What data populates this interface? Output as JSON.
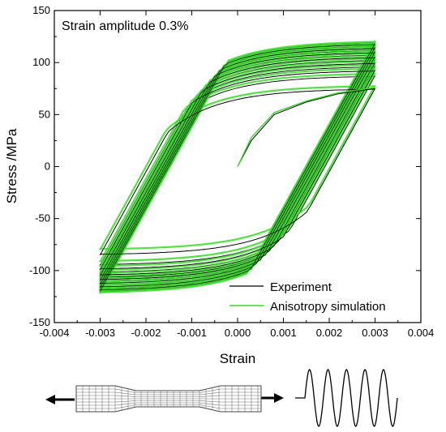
{
  "chart_data": {
    "type": "line",
    "title": "",
    "annotation": "Strain amplitude  0.3%",
    "xlabel": "Strain",
    "ylabel": "Stress /MPa",
    "xlim": [
      -0.004,
      0.004
    ],
    "ylim": [
      -150,
      150
    ],
    "x_ticks": [
      "-0.004",
      "-0.003",
      "-0.002",
      "-0.001",
      "0.000",
      "0.001",
      "0.002",
      "0.003",
      "0.004"
    ],
    "y_ticks": [
      "-150",
      "-100",
      "-50",
      "0",
      "50",
      "100",
      "150"
    ],
    "grid": false,
    "legend_position": "bottom-right",
    "strain_amplitude": 0.003,
    "series": [
      {
        "name": "Experiment",
        "color": "#000000",
        "initial_loading": [
          [
            0.0,
            0
          ],
          [
            0.0003,
            25
          ],
          [
            0.0008,
            50
          ],
          [
            0.0015,
            62
          ],
          [
            0.0022,
            70
          ],
          [
            0.003,
            75
          ]
        ],
        "cycle_peak_stress_range": [
          75,
          120
        ],
        "cycle_valley_stress_range": [
          -85,
          -121
        ]
      },
      {
        "name": "Anisotropy simulation",
        "color": "#33dd22",
        "initial_loading": [
          [
            0.0,
            0
          ],
          [
            0.0003,
            28
          ],
          [
            0.0008,
            52
          ],
          [
            0.0015,
            63
          ],
          [
            0.0022,
            71
          ],
          [
            0.003,
            76
          ]
        ],
        "cycle_peak_stress_range": [
          78,
          121
        ],
        "cycle_valley_stress_range": [
          -80,
          -122
        ]
      }
    ]
  },
  "schematic": {
    "specimen_icon": "dogbone-specimen-icon",
    "arrows_icon": "double-arrow-icon",
    "waveform_icon": "sine-wave-icon"
  }
}
